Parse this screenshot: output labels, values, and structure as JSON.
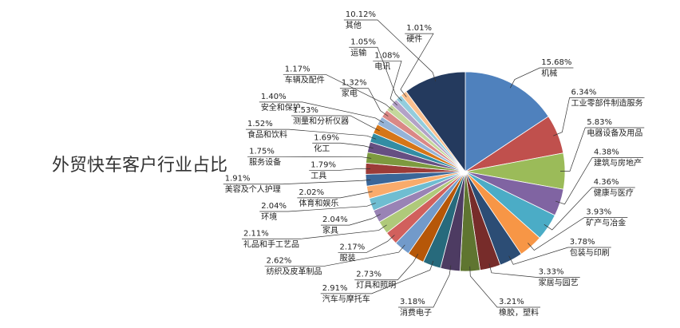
{
  "chart_data": {
    "type": "pie",
    "title": "外贸快车客户行业占比",
    "categories": [
      "机械",
      "工业零部件制造服务",
      "电器设备及用品",
      "建筑与房地产",
      "健康与医疗",
      "矿产与冶金",
      "包装与印刷",
      "家居与园艺",
      "橡胶，塑料",
      "消费电子",
      "汽车与摩托车",
      "灯具和照明",
      "纺织及皮革制品",
      "服装",
      "礼品和手工艺品",
      "家具",
      "环境",
      "体育和娱乐",
      "美容及个人护理",
      "工具",
      "服务设备",
      "化工",
      "食品和饮料",
      "测量和分析仪器",
      "安全和保护",
      "家电",
      "车辆及配件",
      "电讯",
      "运输",
      "硬件",
      "其他"
    ],
    "values": [
      15.68,
      6.34,
      5.83,
      4.38,
      4.36,
      3.93,
      3.78,
      3.33,
      3.21,
      3.18,
      2.91,
      2.73,
      2.62,
      2.17,
      2.11,
      2.04,
      2.04,
      2.02,
      1.91,
      1.79,
      1.75,
      1.69,
      1.52,
      1.53,
      1.4,
      1.32,
      1.17,
      1.08,
      1.05,
      1.01,
      10.12
    ],
    "value_labels": [
      "15.68%",
      "6.34%",
      "5.83%",
      "4.38%",
      "4.36%",
      "3.93%",
      "3.78%",
      "3.33%",
      "3.21%",
      "3.18%",
      "2.91%",
      "2.73%",
      "2.62%",
      "2.17%",
      "2.11%",
      "2.04%",
      "2.04%",
      "2.02%",
      "1.91%",
      "1.79%",
      "1.75%",
      "1.69%",
      "1.52%",
      "1.53%",
      "1.40%",
      "1.32%",
      "1.17%",
      "1.08%",
      "1.05%",
      "1.01%",
      "10.12%"
    ],
    "colors": [
      "#4f81bd",
      "#c0504d",
      "#9bbb59",
      "#8064a2",
      "#4bacc6",
      "#f79646",
      "#2c4d75",
      "#772c2a",
      "#5f7530",
      "#4d3b62",
      "#276a7c",
      "#b65708",
      "#729aca",
      "#d1605d",
      "#afc97a",
      "#9983b5",
      "#6fbdd1",
      "#f9ab6b",
      "#3a6698",
      "#9c3b38",
      "#7d9a3f",
      "#664f82",
      "#338da4",
      "#d67618",
      "#95b3d7",
      "#da8886",
      "#c4d79b",
      "#b3a2c7",
      "#93cddd",
      "#fac090",
      "#243a5e"
    ]
  }
}
